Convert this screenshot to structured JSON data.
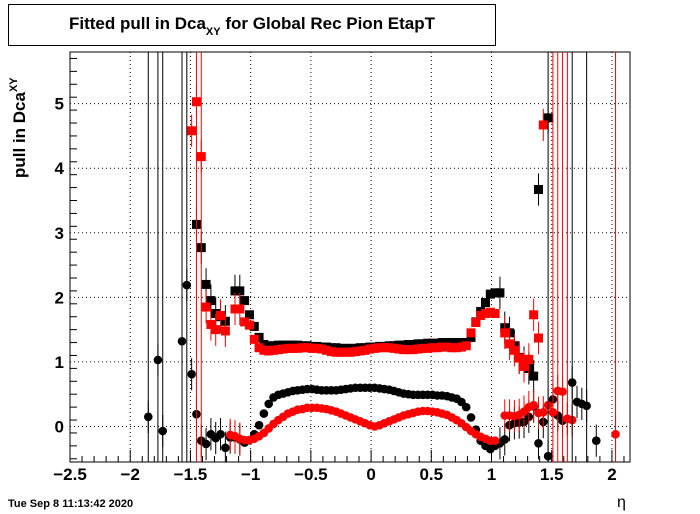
{
  "title_main": "Fitted pull in Dca",
  "title_sub": "XY",
  "title_rest": " for Global Rec Pion EtapT",
  "ylabel_main": "pull in Dca",
  "ylabel_sub": "XY",
  "xlabel": "η",
  "timestamp": "Tue Sep  8 11:13:42 2020",
  "colors": {
    "series_black": "#000000",
    "series_red": "#ff0000",
    "grid": "#000000"
  },
  "chart_data": {
    "type": "scatter",
    "title": "Fitted pull in Dca_XY for Global Rec Pion EtapT",
    "xlabel": "η",
    "ylabel": "pull in Dca_XY",
    "xlim": [
      -2.5,
      2.15
    ],
    "ylim": [
      -0.55,
      5.8
    ],
    "x_ticks": [
      "−2.5",
      "−2",
      "−1.5",
      "−1",
      "−0.5",
      "0",
      "0.5",
      "1",
      "1.5",
      "2"
    ],
    "y_ticks": [
      "0",
      "1",
      "2",
      "3",
      "4",
      "5"
    ],
    "grid": true,
    "series": [
      {
        "marker": "square",
        "color": "#000000",
        "points": [
          [
            -1.45,
            3.13
          ],
          [
            -1.41,
            2.77
          ],
          [
            -1.37,
            2.2
          ],
          [
            -1.33,
            1.95
          ],
          [
            -1.29,
            1.75
          ],
          [
            -1.25,
            1.7
          ],
          [
            -1.21,
            1.63
          ],
          [
            -1.13,
            2.1
          ],
          [
            -1.09,
            2.1
          ],
          [
            -1.05,
            1.95
          ],
          [
            -1.01,
            1.73
          ],
          [
            -0.97,
            1.55
          ],
          [
            -0.93,
            1.38
          ],
          [
            -0.89,
            1.27
          ],
          [
            -0.85,
            1.25
          ],
          [
            -0.81,
            1.25
          ],
          [
            -0.77,
            1.26
          ],
          [
            -0.73,
            1.26
          ],
          [
            -0.69,
            1.26
          ],
          [
            -0.65,
            1.26
          ],
          [
            -0.61,
            1.26
          ],
          [
            -0.57,
            1.25
          ],
          [
            -0.53,
            1.25
          ],
          [
            -0.49,
            1.24
          ],
          [
            -0.45,
            1.24
          ],
          [
            -0.41,
            1.23
          ],
          [
            -0.37,
            1.23
          ],
          [
            -0.33,
            1.22
          ],
          [
            -0.29,
            1.22
          ],
          [
            -0.25,
            1.21
          ],
          [
            -0.21,
            1.21
          ],
          [
            -0.17,
            1.21
          ],
          [
            -0.13,
            1.21
          ],
          [
            -0.09,
            1.22
          ],
          [
            -0.05,
            1.22
          ],
          [
            -0.01,
            1.23
          ],
          [
            0.03,
            1.23
          ],
          [
            0.07,
            1.24
          ],
          [
            0.11,
            1.24
          ],
          [
            0.15,
            1.25
          ],
          [
            0.19,
            1.25
          ],
          [
            0.23,
            1.26
          ],
          [
            0.27,
            1.26
          ],
          [
            0.31,
            1.27
          ],
          [
            0.35,
            1.27
          ],
          [
            0.39,
            1.28
          ],
          [
            0.43,
            1.28
          ],
          [
            0.47,
            1.29
          ],
          [
            0.51,
            1.29
          ],
          [
            0.55,
            1.29
          ],
          [
            0.59,
            1.3
          ],
          [
            0.63,
            1.3
          ],
          [
            0.67,
            1.3
          ],
          [
            0.71,
            1.3
          ],
          [
            0.75,
            1.3
          ],
          [
            0.79,
            1.3
          ],
          [
            0.83,
            1.38
          ],
          [
            0.87,
            1.62
          ],
          [
            0.91,
            1.78
          ],
          [
            0.95,
            1.92
          ],
          [
            0.99,
            2.05
          ],
          [
            1.03,
            2.07
          ],
          [
            1.07,
            2.07
          ],
          [
            1.11,
            1.53
          ],
          [
            1.15,
            1.45
          ],
          [
            1.19,
            1.25
          ],
          [
            1.23,
            1.07
          ],
          [
            1.27,
            0.99
          ],
          [
            1.31,
            0.9
          ],
          [
            1.35,
            0.78
          ],
          [
            1.39,
            3.67
          ],
          [
            1.47,
            4.78
          ]
        ]
      },
      {
        "marker": "square",
        "color": "#ff0000",
        "points": [
          [
            -1.49,
            4.58
          ],
          [
            -1.45,
            5.03
          ],
          [
            -1.41,
            4.18
          ],
          [
            -1.37,
            1.85
          ],
          [
            -1.33,
            1.58
          ],
          [
            -1.29,
            1.5
          ],
          [
            -1.25,
            1.72
          ],
          [
            -1.21,
            1.48
          ],
          [
            -1.13,
            1.82
          ],
          [
            -1.09,
            1.82
          ],
          [
            -1.05,
            1.62
          ],
          [
            -1.01,
            1.57
          ],
          [
            -0.97,
            1.35
          ],
          [
            -0.93,
            1.22
          ],
          [
            -0.89,
            1.18
          ],
          [
            -0.85,
            1.17
          ],
          [
            -0.81,
            1.18
          ],
          [
            -0.77,
            1.19
          ],
          [
            -0.73,
            1.2
          ],
          [
            -0.69,
            1.21
          ],
          [
            -0.65,
            1.21
          ],
          [
            -0.61,
            1.21
          ],
          [
            -0.57,
            1.22
          ],
          [
            -0.53,
            1.22
          ],
          [
            -0.49,
            1.21
          ],
          [
            -0.45,
            1.21
          ],
          [
            -0.41,
            1.2
          ],
          [
            -0.37,
            1.18
          ],
          [
            -0.33,
            1.16
          ],
          [
            -0.29,
            1.15
          ],
          [
            -0.25,
            1.15
          ],
          [
            -0.21,
            1.15
          ],
          [
            -0.17,
            1.15
          ],
          [
            -0.13,
            1.16
          ],
          [
            -0.09,
            1.17
          ],
          [
            -0.05,
            1.18
          ],
          [
            -0.01,
            1.2
          ],
          [
            0.03,
            1.21
          ],
          [
            0.07,
            1.22
          ],
          [
            0.11,
            1.22
          ],
          [
            0.15,
            1.22
          ],
          [
            0.19,
            1.21
          ],
          [
            0.23,
            1.2
          ],
          [
            0.27,
            1.19
          ],
          [
            0.31,
            1.19
          ],
          [
            0.35,
            1.19
          ],
          [
            0.39,
            1.2
          ],
          [
            0.43,
            1.21
          ],
          [
            0.47,
            1.21
          ],
          [
            0.51,
            1.22
          ],
          [
            0.55,
            1.22
          ],
          [
            0.59,
            1.23
          ],
          [
            0.63,
            1.23
          ],
          [
            0.67,
            1.22
          ],
          [
            0.71,
            1.22
          ],
          [
            0.75,
            1.23
          ],
          [
            0.79,
            1.25
          ],
          [
            0.83,
            1.45
          ],
          [
            0.87,
            1.61
          ],
          [
            0.91,
            1.72
          ],
          [
            0.95,
            1.75
          ],
          [
            0.99,
            1.77
          ],
          [
            1.03,
            1.75
          ],
          [
            1.11,
            1.45
          ],
          [
            1.15,
            1.28
          ],
          [
            1.19,
            1.18
          ],
          [
            1.23,
            1.06
          ],
          [
            1.27,
            0.93
          ],
          [
            1.31,
            1.04
          ],
          [
            1.35,
            1.73
          ],
          [
            1.39,
            1.37
          ],
          [
            1.43,
            4.67
          ]
        ]
      },
      {
        "marker": "circle",
        "color": "#000000",
        "points": [
          [
            -1.85,
            0.15
          ],
          [
            -1.77,
            1.03
          ],
          [
            -1.73,
            -0.07
          ],
          [
            -1.57,
            1.32
          ],
          [
            -1.53,
            2.19
          ],
          [
            -1.49,
            0.81
          ],
          [
            -1.45,
            0.19
          ],
          [
            -1.41,
            -0.22
          ],
          [
            -1.37,
            -0.27
          ],
          [
            -1.33,
            -0.12
          ],
          [
            -1.29,
            -0.18
          ],
          [
            -1.25,
            -0.12
          ],
          [
            -1.21,
            -0.33
          ],
          [
            -1.17,
            -0.17
          ],
          [
            -1.13,
            -0.17
          ],
          [
            -1.09,
            -0.2
          ],
          [
            -1.05,
            -0.25
          ],
          [
            -1.01,
            -0.21
          ],
          [
            -0.97,
            -0.12
          ],
          [
            -0.93,
            0.02
          ],
          [
            -0.89,
            0.2
          ],
          [
            -0.85,
            0.35
          ],
          [
            -0.81,
            0.45
          ],
          [
            -0.77,
            0.49
          ],
          [
            -0.73,
            0.51
          ],
          [
            -0.69,
            0.53
          ],
          [
            -0.65,
            0.55
          ],
          [
            -0.61,
            0.56
          ],
          [
            -0.57,
            0.57
          ],
          [
            -0.53,
            0.58
          ],
          [
            -0.49,
            0.58
          ],
          [
            -0.45,
            0.57
          ],
          [
            -0.41,
            0.56
          ],
          [
            -0.37,
            0.56
          ],
          [
            -0.33,
            0.56
          ],
          [
            -0.29,
            0.56
          ],
          [
            -0.25,
            0.57
          ],
          [
            -0.21,
            0.58
          ],
          [
            -0.17,
            0.59
          ],
          [
            -0.13,
            0.6
          ],
          [
            -0.09,
            0.6
          ],
          [
            -0.05,
            0.6
          ],
          [
            -0.01,
            0.6
          ],
          [
            0.03,
            0.6
          ],
          [
            0.07,
            0.59
          ],
          [
            0.11,
            0.58
          ],
          [
            0.15,
            0.57
          ],
          [
            0.19,
            0.55
          ],
          [
            0.23,
            0.53
          ],
          [
            0.27,
            0.51
          ],
          [
            0.31,
            0.5
          ],
          [
            0.35,
            0.49
          ],
          [
            0.39,
            0.49
          ],
          [
            0.43,
            0.49
          ],
          [
            0.47,
            0.49
          ],
          [
            0.51,
            0.49
          ],
          [
            0.55,
            0.48
          ],
          [
            0.59,
            0.48
          ],
          [
            0.63,
            0.47
          ],
          [
            0.67,
            0.45
          ],
          [
            0.71,
            0.43
          ],
          [
            0.75,
            0.38
          ],
          [
            0.79,
            0.3
          ],
          [
            0.83,
            0.14
          ],
          [
            0.87,
            -0.05
          ],
          [
            0.91,
            -0.22
          ],
          [
            0.95,
            -0.3
          ],
          [
            0.99,
            -0.35
          ],
          [
            1.03,
            -0.3
          ],
          [
            1.07,
            -0.26
          ],
          [
            1.11,
            -0.2
          ],
          [
            1.15,
            0.02
          ],
          [
            1.19,
            0.05
          ],
          [
            1.23,
            0.06
          ],
          [
            1.27,
            0.07
          ],
          [
            1.31,
            0.15
          ],
          [
            1.35,
            0.31
          ],
          [
            1.39,
            -0.26
          ],
          [
            1.43,
            0.07
          ],
          [
            1.47,
            -0.46
          ],
          [
            1.51,
            0.42
          ],
          [
            1.55,
            0.17
          ],
          [
            1.59,
            0.09
          ],
          [
            1.63,
            0.12
          ],
          [
            1.67,
            0.68
          ],
          [
            1.71,
            0.38
          ],
          [
            1.75,
            0.35
          ],
          [
            1.79,
            0.32
          ],
          [
            1.87,
            -0.22
          ]
        ]
      },
      {
        "marker": "circle",
        "color": "#ff0000",
        "points": [
          [
            -1.17,
            -0.13
          ],
          [
            -1.13,
            -0.15
          ],
          [
            -1.09,
            -0.19
          ],
          [
            -1.05,
            -0.21
          ],
          [
            -1.01,
            -0.21
          ],
          [
            -0.97,
            -0.19
          ],
          [
            -0.93,
            -0.15
          ],
          [
            -0.89,
            -0.1
          ],
          [
            -0.85,
            -0.03
          ],
          [
            -0.81,
            0.04
          ],
          [
            -0.77,
            0.1
          ],
          [
            -0.73,
            0.15
          ],
          [
            -0.69,
            0.2
          ],
          [
            -0.65,
            0.23
          ],
          [
            -0.61,
            0.26
          ],
          [
            -0.57,
            0.27
          ],
          [
            -0.53,
            0.29
          ],
          [
            -0.49,
            0.29
          ],
          [
            -0.45,
            0.29
          ],
          [
            -0.41,
            0.28
          ],
          [
            -0.37,
            0.27
          ],
          [
            -0.33,
            0.25
          ],
          [
            -0.29,
            0.23
          ],
          [
            -0.25,
            0.2
          ],
          [
            -0.21,
            0.17
          ],
          [
            -0.17,
            0.14
          ],
          [
            -0.13,
            0.11
          ],
          [
            -0.09,
            0.08
          ],
          [
            -0.05,
            0.05
          ],
          [
            -0.01,
            0.02
          ],
          [
            0.03,
            0.0
          ],
          [
            0.07,
            0.02
          ],
          [
            0.11,
            0.05
          ],
          [
            0.15,
            0.08
          ],
          [
            0.19,
            0.11
          ],
          [
            0.23,
            0.14
          ],
          [
            0.27,
            0.17
          ],
          [
            0.31,
            0.19
          ],
          [
            0.35,
            0.21
          ],
          [
            0.39,
            0.23
          ],
          [
            0.43,
            0.24
          ],
          [
            0.47,
            0.24
          ],
          [
            0.51,
            0.23
          ],
          [
            0.55,
            0.22
          ],
          [
            0.59,
            0.2
          ],
          [
            0.63,
            0.18
          ],
          [
            0.67,
            0.14
          ],
          [
            0.71,
            0.1
          ],
          [
            0.75,
            0.05
          ],
          [
            0.79,
            -0.01
          ],
          [
            0.83,
            -0.07
          ],
          [
            0.87,
            -0.12
          ],
          [
            0.91,
            -0.16
          ],
          [
            0.95,
            -0.19
          ],
          [
            0.99,
            -0.22
          ],
          [
            1.03,
            -0.22
          ],
          [
            1.11,
            0.17
          ],
          [
            1.15,
            0.17
          ],
          [
            1.19,
            0.16
          ],
          [
            1.23,
            0.18
          ],
          [
            1.27,
            0.23
          ],
          [
            1.31,
            0.3
          ],
          [
            1.35,
            0.33
          ],
          [
            1.39,
            0.21
          ],
          [
            1.43,
            0.22
          ],
          [
            1.47,
            0.33
          ],
          [
            1.51,
            0.22
          ],
          [
            1.55,
            0.55
          ],
          [
            1.59,
            0.54
          ],
          [
            1.63,
            0.12
          ],
          [
            1.67,
            0.1
          ],
          [
            2.03,
            -0.12
          ]
        ]
      }
    ]
  }
}
